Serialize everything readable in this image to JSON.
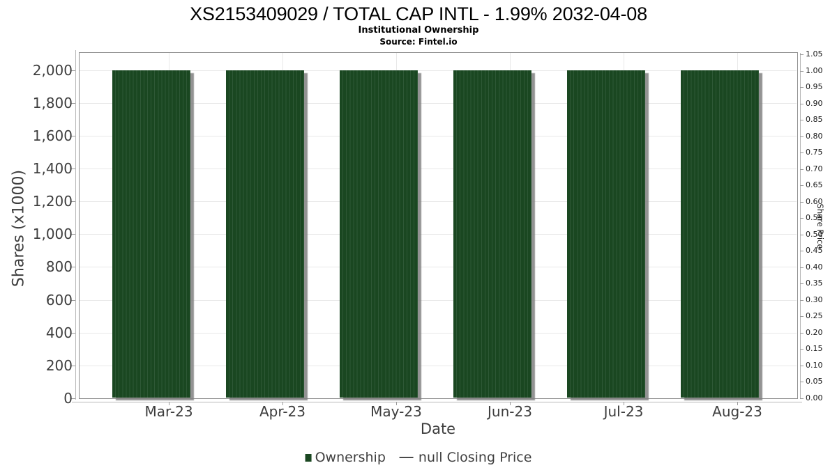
{
  "header": {
    "title": "XS2153409029 / TOTAL CAP INTL - 1.99% 2032-04-08",
    "subtitle": "Institutional Ownership",
    "source": "Source: Fintel.io"
  },
  "chart_data": {
    "type": "bar",
    "title": "XS2153409029 / TOTAL CAP INTL - 1.99% 2032-04-08",
    "subtitle": "Institutional Ownership",
    "source": "Source: Fintel.io",
    "xlabel": "Date",
    "grid": true,
    "legend_position": "bottom",
    "categories": [
      "Mar-23",
      "Apr-23",
      "May-23",
      "Jun-23",
      "Jul-23",
      "Aug-23"
    ],
    "series": [
      {
        "name": "Ownership",
        "type": "bar",
        "color": "#1a4721",
        "unit": "Shares (x1000)",
        "values": [
          2000,
          2000,
          2000,
          2000,
          2000,
          2000
        ],
        "daily_bars_per_group": 22
      },
      {
        "name": "null Closing Price",
        "type": "line",
        "color": "#4a4a4a",
        "values": []
      }
    ],
    "left_axis": {
      "label": "Shares (x1000)",
      "min": 0,
      "max": 2000,
      "tick_step": 200,
      "ticks": [
        "0",
        "200",
        "400",
        "600",
        "800",
        "1,000",
        "1,200",
        "1,400",
        "1,600",
        "1,800",
        "2,000"
      ]
    },
    "right_axis": {
      "label": "Share Price",
      "min": 0,
      "max": 1.05,
      "tick_step": 0.05,
      "ticks": [
        "0.00",
        "0.05",
        "0.10",
        "0.15",
        "0.20",
        "0.25",
        "0.30",
        "0.35",
        "0.40",
        "0.45",
        "0.50",
        "0.55",
        "0.60",
        "0.65",
        "0.70",
        "0.75",
        "0.80",
        "0.85",
        "0.90",
        "0.95",
        "1.00",
        "1.05"
      ]
    }
  },
  "legend": {
    "items": [
      {
        "label": "Ownership",
        "marker": "square",
        "color": "#1a4721"
      },
      {
        "label": "null Closing Price",
        "marker": "line",
        "color": "#4a4a4a"
      }
    ]
  }
}
